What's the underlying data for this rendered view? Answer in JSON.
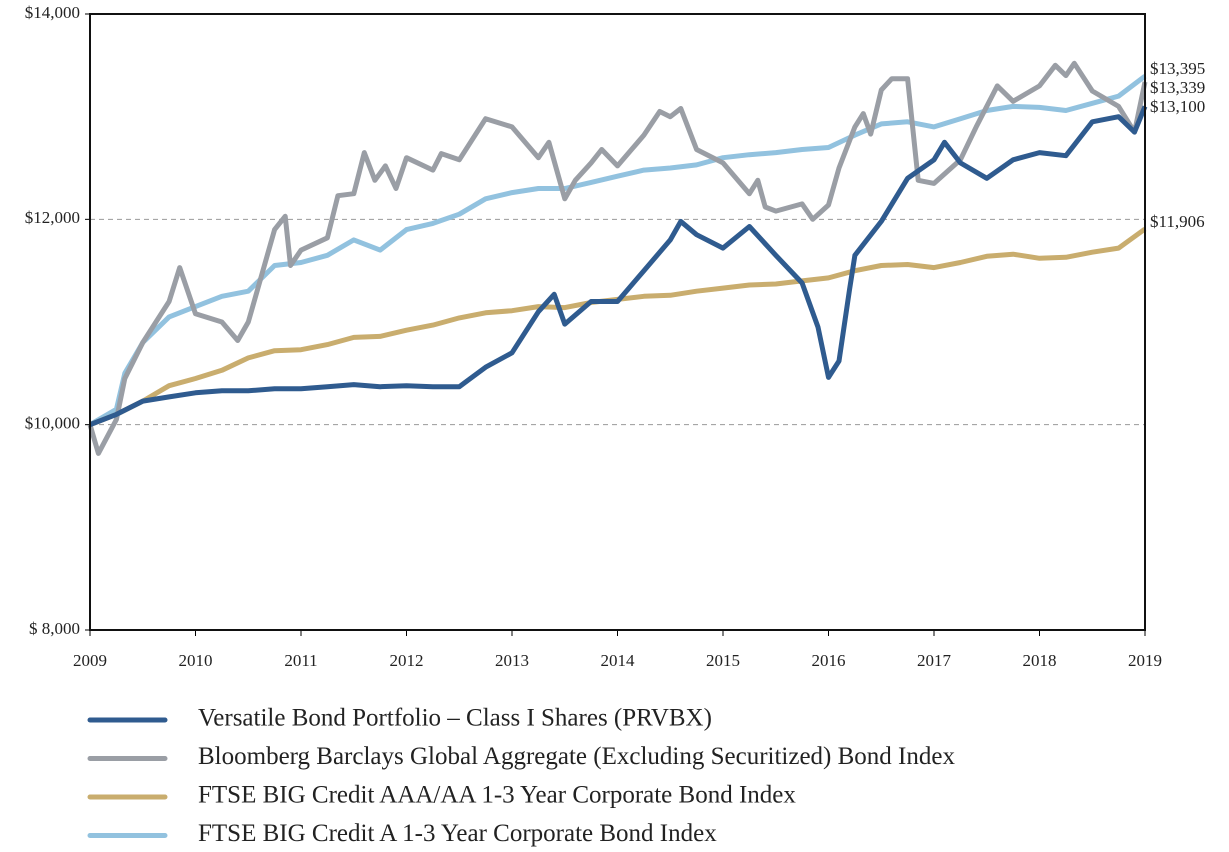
{
  "chart_data": {
    "type": "line",
    "xlim": [
      2009,
      2019
    ],
    "xticks": [
      2009,
      2010,
      2011,
      2012,
      2013,
      2014,
      2015,
      2016,
      2017,
      2018,
      2019
    ],
    "ylim": [
      8000,
      14000
    ],
    "yticks": [
      {
        "value": 8000,
        "label": "$ 8,000"
      },
      {
        "value": 10000,
        "label": "$10,000"
      },
      {
        "value": 12000,
        "label": "$12,000"
      },
      {
        "value": 14000,
        "label": "$14,000"
      }
    ],
    "grid": true,
    "series": [
      {
        "name": "Versatile Bond Portfolio – Class I Shares (PRVBX)",
        "color": "#2f5b8f",
        "end_label": "$13,100",
        "x": [
          2009,
          2009.25,
          2009.5,
          2009.75,
          2010,
          2010.25,
          2010.5,
          2010.75,
          2011,
          2011.25,
          2011.5,
          2011.75,
          2012,
          2012.25,
          2012.5,
          2012.75,
          2013,
          2013.25,
          2013.4,
          2013.5,
          2013.75,
          2014,
          2014.25,
          2014.5,
          2014.6,
          2014.75,
          2015,
          2015.25,
          2015.5,
          2015.75,
          2015.9,
          2016,
          2016.1,
          2016.2,
          2016.25,
          2016.5,
          2016.75,
          2017,
          2017.1,
          2017.25,
          2017.5,
          2017.75,
          2018,
          2018.25,
          2018.5,
          2018.75,
          2018.9,
          2019
        ],
        "values": [
          10000,
          10100,
          10230,
          10270,
          10310,
          10330,
          10330,
          10350,
          10350,
          10370,
          10390,
          10370,
          10380,
          10370,
          10370,
          10560,
          10700,
          11100,
          11270,
          10980,
          11200,
          11200,
          11500,
          11800,
          11980,
          11850,
          11720,
          11930,
          11650,
          11380,
          10950,
          10460,
          10620,
          11320,
          11650,
          11980,
          12400,
          12580,
          12750,
          12550,
          12400,
          12580,
          12650,
          12620,
          12950,
          13000,
          12850,
          13100
        ]
      },
      {
        "name": "Bloomberg Barclays Global Aggregate (Excluding Securitized) Bond Index",
        "color": "#9a9ea5",
        "end_label": "$13,339",
        "x": [
          2009,
          2009.08,
          2009.25,
          2009.33,
          2009.5,
          2009.75,
          2009.85,
          2010,
          2010.25,
          2010.4,
          2010.5,
          2010.75,
          2010.85,
          2010.9,
          2011,
          2011.25,
          2011.35,
          2011.5,
          2011.6,
          2011.7,
          2011.8,
          2011.9,
          2012,
          2012.25,
          2012.33,
          2012.5,
          2012.75,
          2013,
          2013.25,
          2013.35,
          2013.5,
          2013.6,
          2013.75,
          2013.85,
          2014,
          2014.25,
          2014.4,
          2014.5,
          2014.6,
          2014.75,
          2015,
          2015.25,
          2015.33,
          2015.4,
          2015.5,
          2015.75,
          2015.85,
          2016,
          2016.1,
          2016.25,
          2016.33,
          2016.4,
          2016.5,
          2016.6,
          2016.75,
          2016.85,
          2017,
          2017.25,
          2017.4,
          2017.6,
          2017.75,
          2018,
          2018.15,
          2018.25,
          2018.33,
          2018.5,
          2018.75,
          2018.9,
          2019
        ],
        "values": [
          10000,
          9720,
          10050,
          10450,
          10800,
          11200,
          11530,
          11080,
          11000,
          10820,
          11000,
          11900,
          12030,
          11550,
          11700,
          11820,
          12230,
          12250,
          12650,
          12380,
          12520,
          12300,
          12600,
          12480,
          12640,
          12580,
          12980,
          12900,
          12600,
          12750,
          12200,
          12380,
          12550,
          12680,
          12520,
          12820,
          13050,
          13000,
          13080,
          12680,
          12550,
          12250,
          12380,
          12120,
          12080,
          12150,
          12000,
          12140,
          12500,
          12900,
          13030,
          12830,
          13260,
          13370,
          13370,
          12380,
          12350,
          12580,
          12900,
          13300,
          13150,
          13300,
          13500,
          13400,
          13520,
          13250,
          13100,
          12850,
          13339
        ]
      },
      {
        "name": "FTSE BIG Credit AAA/AA 1-3 Year Corporate Bond Index",
        "color": "#c9ad6e",
        "end_label": "$11,906",
        "x": [
          2009,
          2009.25,
          2009.5,
          2009.75,
          2010,
          2010.25,
          2010.5,
          2010.75,
          2011,
          2011.25,
          2011.5,
          2011.75,
          2012,
          2012.25,
          2012.5,
          2012.75,
          2013,
          2013.25,
          2013.5,
          2013.75,
          2014,
          2014.25,
          2014.5,
          2014.75,
          2015,
          2015.25,
          2015.5,
          2015.75,
          2016,
          2016.25,
          2016.5,
          2016.75,
          2017,
          2017.25,
          2017.5,
          2017.75,
          2018,
          2018.25,
          2018.5,
          2018.75,
          2019
        ],
        "values": [
          10000,
          10100,
          10230,
          10380,
          10450,
          10530,
          10650,
          10720,
          10730,
          10780,
          10850,
          10860,
          10920,
          10970,
          11040,
          11090,
          11110,
          11150,
          11140,
          11190,
          11220,
          11250,
          11260,
          11300,
          11330,
          11360,
          11370,
          11400,
          11430,
          11500,
          11550,
          11560,
          11530,
          11580,
          11640,
          11660,
          11620,
          11630,
          11680,
          11720,
          11906
        ]
      },
      {
        "name": "FTSE BIG Credit A 1-3 Year Corporate Bond Index",
        "color": "#92c2df",
        "end_label": "$13,395",
        "x": [
          2009,
          2009.25,
          2009.33,
          2009.5,
          2009.75,
          2010,
          2010.25,
          2010.5,
          2010.75,
          2011,
          2011.25,
          2011.5,
          2011.75,
          2012,
          2012.25,
          2012.5,
          2012.75,
          2013,
          2013.25,
          2013.5,
          2013.75,
          2014,
          2014.25,
          2014.5,
          2014.75,
          2015,
          2015.25,
          2015.5,
          2015.75,
          2016,
          2016.25,
          2016.5,
          2016.75,
          2017,
          2017.25,
          2017.5,
          2017.75,
          2018,
          2018.25,
          2018.5,
          2018.75,
          2019
        ],
        "values": [
          10000,
          10150,
          10500,
          10800,
          11050,
          11150,
          11250,
          11300,
          11550,
          11580,
          11650,
          11800,
          11700,
          11900,
          11960,
          12050,
          12200,
          12260,
          12300,
          12300,
          12360,
          12420,
          12480,
          12500,
          12530,
          12600,
          12630,
          12650,
          12680,
          12700,
          12820,
          12930,
          12950,
          12900,
          12980,
          13060,
          13100,
          13090,
          13060,
          13130,
          13200,
          13395
        ]
      }
    ]
  }
}
